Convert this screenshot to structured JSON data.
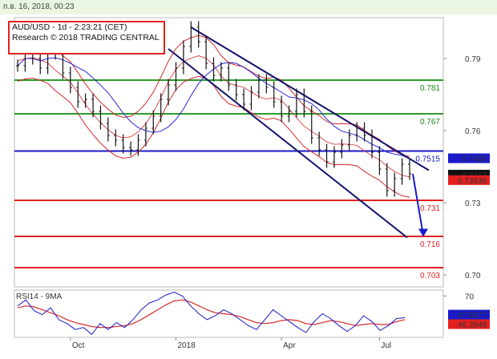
{
  "header": {
    "timestamp": "п.в. 16, 2018, 00:23"
  },
  "chart_data": {
    "type": "line",
    "title": "AUD/USD - 1d - 2:23:21 (CET)",
    "subtitle": "Research © 2018 TRADING CENTRAL",
    "price_axis": {
      "ylim": [
        0.695,
        0.807
      ],
      "ticks": [
        "0.79",
        "0.76",
        "0.73",
        "0.70"
      ]
    },
    "x_ticks": [
      "Oct",
      "2018",
      "Apr",
      "Jul"
    ],
    "levels": [
      {
        "label": "0.781",
        "value": 0.781,
        "color": "#2e9a2e",
        "label_color": "#1f8a1f"
      },
      {
        "label": "0.767",
        "value": 0.767,
        "color": "#2e9a2e",
        "label_color": "#1f8a1f"
      },
      {
        "label": "0.7515",
        "value": 0.7515,
        "color": "#1a1ac8",
        "label_color": "#1a1ac8"
      },
      {
        "label": "0.731",
        "value": 0.731,
        "color": "#e41f1f",
        "label_color": "#e41f1f"
      },
      {
        "label": "0.716",
        "value": 0.716,
        "color": "#e41f1f",
        "label_color": "#e41f1f"
      },
      {
        "label": "0.703",
        "value": 0.703,
        "color": "#e41f1f",
        "label_color": "#e41f1f"
      }
    ],
    "price_badges": [
      {
        "label": "0.7485",
        "value": 0.7485,
        "bg": "#1a1ac8",
        "fg": "#ffffff"
      },
      {
        "label": "0.7417",
        "value": 0.7417,
        "bg": "#111111",
        "fg": "#ffffff"
      },
      {
        "label": "0.73939",
        "value": 0.7394,
        "bg": "#e41f1f",
        "fg": "#ffffff"
      }
    ],
    "price_series": [
      0.787,
      0.793,
      0.79,
      0.786,
      0.794,
      0.792,
      0.784,
      0.778,
      0.772,
      0.773,
      0.768,
      0.763,
      0.758,
      0.756,
      0.753,
      0.752,
      0.756,
      0.761,
      0.766,
      0.773,
      0.779,
      0.786,
      0.795,
      0.803,
      0.797,
      0.788,
      0.783,
      0.786,
      0.779,
      0.775,
      0.771,
      0.776,
      0.781,
      0.778,
      0.772,
      0.766,
      0.768,
      0.775,
      0.768,
      0.757,
      0.752,
      0.747,
      0.751,
      0.754,
      0.758,
      0.761,
      0.758,
      0.751,
      0.744,
      0.735,
      0.74,
      0.746,
      0.742
    ],
    "indicator": {
      "name": "RSI14 - 9MA",
      "ylim": [
        28,
        76
      ],
      "ticks": [
        "70"
      ],
      "rsi": [
        60,
        66,
        55,
        51,
        58,
        46,
        42,
        36,
        38,
        31,
        42,
        36,
        43,
        38,
        46,
        56,
        63,
        66,
        71,
        74,
        70,
        60,
        52,
        46,
        50,
        56,
        52,
        46,
        40,
        36,
        46,
        56,
        50,
        44,
        38,
        33,
        44,
        52,
        47,
        40,
        34,
        40,
        50,
        44,
        35,
        40,
        47,
        48
      ],
      "ma": [
        58,
        60,
        59,
        56,
        53,
        50,
        46,
        43,
        41,
        39,
        38,
        38,
        39,
        40,
        42,
        46,
        51,
        56,
        61,
        65,
        66,
        64,
        60,
        56,
        53,
        52,
        51,
        49,
        46,
        43,
        42,
        43,
        45,
        46,
        45,
        42,
        41,
        43,
        45,
        44,
        42,
        40,
        41,
        42,
        41,
        41,
        44,
        46
      ],
      "badges": [
        {
          "label": "47.8577",
          "value": 47.86,
          "bg": "#1a1ac8",
          "fg": "#ffffff"
        },
        {
          "label": "46.2949",
          "value": 46.29,
          "bg": "#e41f1f",
          "fg": "#ffffff"
        }
      ]
    }
  }
}
